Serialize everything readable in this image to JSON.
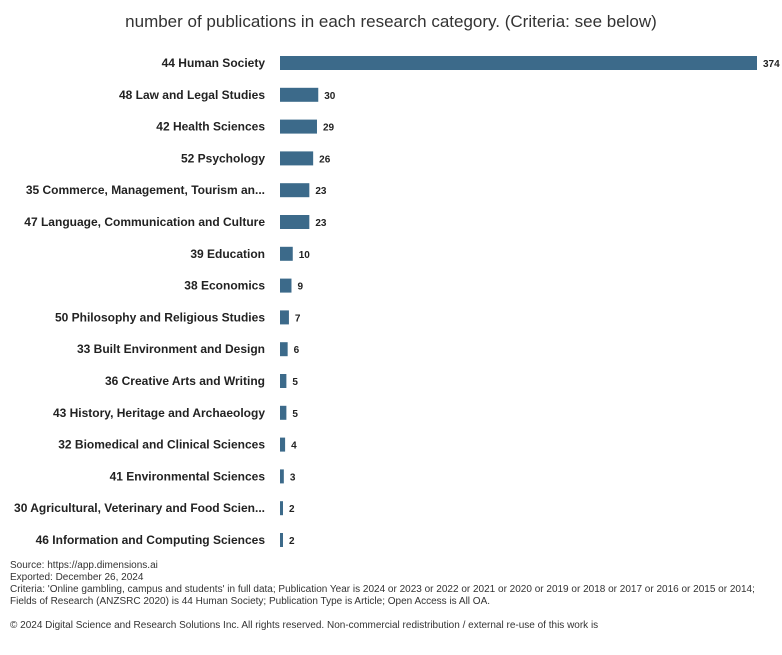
{
  "chart_data": {
    "type": "bar",
    "orientation": "horizontal",
    "title": "number of publications in each research category. (Criteria: see below)",
    "categories": [
      "44 Human Society",
      "48 Law and Legal Studies",
      "42 Health Sciences",
      "52 Psychology",
      "35 Commerce, Management, Tourism an...",
      "47 Language, Communication and Culture",
      "39 Education",
      "38 Economics",
      "50 Philosophy and Religious Studies",
      "33 Built Environment and Design",
      "36 Creative Arts and Writing",
      "43 History, Heritage and Archaeology",
      "32 Biomedical and Clinical Sciences",
      "41 Environmental Sciences",
      "30 Agricultural, Veterinary and Food Scien...",
      "46 Information and Computing Sciences"
    ],
    "values": [
      374,
      30,
      29,
      26,
      23,
      23,
      10,
      9,
      7,
      6,
      5,
      5,
      4,
      3,
      2,
      2
    ],
    "xlim": [
      0,
      374
    ],
    "grid": false,
    "bar_color": "#3c6a8a"
  },
  "footer": {
    "source": "Source: https://app.dimensions.ai",
    "exported": "Exported: December 26, 2024",
    "criteria": "Criteria: 'Online gambling, campus and students' in full data; Publication Year is 2024 or 2023 or 2022 or 2021 or 2020 or 2019 or 2018 or 2017 or 2016 or 2015 or 2014; Fields of Research (ANZSRC 2020) is 44 Human Society; Publication Type is Article; Open Access is All OA.",
    "copyright": "© 2024 Digital Science and Research Solutions Inc. All rights reserved. Non-commercial redistribution / external re-use of this work is"
  }
}
